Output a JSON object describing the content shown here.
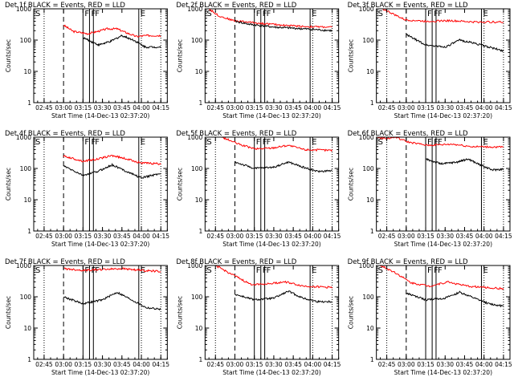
{
  "chart_data": [
    {
      "type": "line",
      "title": "Det 1f  BLACK = Events, RED = LLD",
      "xlabel": "Start Time (14-Dec-13 02:37:20)",
      "ylabel": "Counts/sec",
      "yscale": "log",
      "ylim": [
        1,
        1000
      ],
      "yticks": [
        "1",
        "10",
        "100",
        "1000"
      ],
      "xlim": [
        "02:37",
        "04:20"
      ],
      "xticks": [
        "02:45",
        "03:00",
        "03:15",
        "03:30",
        "03:45",
        "04:00",
        "04:15"
      ],
      "markers": [
        {
          "label": "S",
          "time": "02:37"
        },
        {
          "label": "F",
          "time": "03:15"
        },
        {
          "label": "F",
          "time": "03:20"
        },
        {
          "label": "F",
          "time": "03:23"
        },
        {
          "label": "E",
          "time": "03:58"
        }
      ],
      "series": [
        {
          "color": "#ff0000",
          "t_start": "03:00",
          "t_end": "04:15",
          "points": [
            [
              0,
              300
            ],
            [
              10,
              190
            ],
            [
              25,
              160
            ],
            [
              35,
              190
            ],
            [
              45,
              230
            ],
            [
              55,
              230
            ],
            [
              65,
              170
            ],
            [
              75,
              130
            ],
            [
              85,
              140
            ],
            [
              100,
              140
            ]
          ]
        },
        {
          "color": "#000000",
          "t_start": "03:15",
          "t_end": "04:15",
          "points": [
            [
              0,
              120
            ],
            [
              20,
              70
            ],
            [
              35,
              90
            ],
            [
              50,
              140
            ],
            [
              65,
              100
            ],
            [
              80,
              60
            ],
            [
              100,
              60
            ]
          ]
        }
      ]
    },
    {
      "type": "line",
      "title": "Det 2f  BLACK = Events, RED = LLD",
      "xlabel": "Start Time (14-Dec-13 02:37:20)",
      "ylabel": "Counts/sec",
      "yscale": "log",
      "ylim": [
        1,
        1000
      ],
      "yticks": [
        "1",
        "10",
        "100",
        "1000"
      ],
      "xlim": [
        "02:37",
        "04:20"
      ],
      "xticks": [
        "02:45",
        "03:00",
        "03:15",
        "03:30",
        "03:45",
        "04:00",
        "04:15"
      ],
      "markers": [
        {
          "label": "S",
          "time": "02:37"
        },
        {
          "label": "F",
          "time": "03:15"
        },
        {
          "label": "F",
          "time": "03:20"
        },
        {
          "label": "F",
          "time": "03:23"
        },
        {
          "label": "E",
          "time": "03:58"
        }
      ],
      "series": [
        {
          "color": "#ff0000",
          "t_start": "02:40",
          "t_end": "04:15",
          "points": [
            [
              0,
              1000
            ],
            [
              8,
              600
            ],
            [
              20,
              420
            ],
            [
              40,
              350
            ],
            [
              60,
              300
            ],
            [
              80,
              270
            ],
            [
              100,
              260
            ]
          ]
        },
        {
          "color": "#000000",
          "t_start": "03:00",
          "t_end": "04:15",
          "points": [
            [
              0,
              400
            ],
            [
              15,
              320
            ],
            [
              40,
              260
            ],
            [
              60,
              240
            ],
            [
              80,
              220
            ],
            [
              100,
              200
            ]
          ]
        }
      ]
    },
    {
      "type": "line",
      "title": "Det 3f  BLACK = Events, RED = LLD",
      "xlabel": "Start Time (14-Dec-13 02:37:20)",
      "ylabel": "Counts/sec",
      "yscale": "log",
      "ylim": [
        1,
        1000
      ],
      "yticks": [
        "1",
        "10",
        "100",
        "1000"
      ],
      "xlim": [
        "02:37",
        "04:20"
      ],
      "xticks": [
        "02:45",
        "03:00",
        "03:15",
        "03:30",
        "03:45",
        "04:00",
        "04:15"
      ],
      "markers": [
        {
          "label": "S",
          "time": "02:37"
        },
        {
          "label": "F",
          "time": "03:15"
        },
        {
          "label": "F",
          "time": "03:20"
        },
        {
          "label": "F",
          "time": "03:23"
        },
        {
          "label": "E",
          "time": "03:58"
        }
      ],
      "series": [
        {
          "color": "#ff0000",
          "t_start": "02:42",
          "t_end": "04:15",
          "points": [
            [
              0,
              1000
            ],
            [
              8,
              700
            ],
            [
              18,
              450
            ],
            [
              35,
              400
            ],
            [
              55,
              420
            ],
            [
              75,
              380
            ],
            [
              100,
              380
            ]
          ]
        },
        {
          "color": "#000000",
          "t_start": "03:00",
          "t_end": "04:15",
          "points": [
            [
              0,
              150
            ],
            [
              20,
              70
            ],
            [
              40,
              60
            ],
            [
              55,
              100
            ],
            [
              70,
              80
            ],
            [
              85,
              60
            ],
            [
              100,
              45
            ]
          ]
        }
      ]
    },
    {
      "type": "line",
      "title": "Det 4f  BLACK = Events, RED = LLD",
      "xlabel": "Start Time (14-Dec-13 02:37:20)",
      "ylabel": "Counts/sec",
      "yscale": "log",
      "ylim": [
        1,
        1000
      ],
      "yticks": [
        "1",
        "10",
        "100",
        "1000"
      ],
      "xlim": [
        "02:37",
        "04:20"
      ],
      "xticks": [
        "02:45",
        "03:00",
        "03:15",
        "03:30",
        "03:45",
        "04:00",
        "04:15"
      ],
      "markers": [
        {
          "label": "S",
          "time": "02:37"
        },
        {
          "label": "F",
          "time": "03:15"
        },
        {
          "label": "F",
          "time": "03:20"
        },
        {
          "label": "F",
          "time": "03:23"
        },
        {
          "label": "E",
          "time": "03:58"
        }
      ],
      "series": [
        {
          "color": "#ff0000",
          "t_start": "03:00",
          "t_end": "04:15",
          "points": [
            [
              0,
              250
            ],
            [
              20,
              170
            ],
            [
              35,
              200
            ],
            [
              50,
              260
            ],
            [
              65,
              200
            ],
            [
              80,
              150
            ],
            [
              100,
              140
            ]
          ]
        },
        {
          "color": "#000000",
          "t_start": "03:00",
          "t_end": "04:15",
          "points": [
            [
              0,
              120
            ],
            [
              20,
              60
            ],
            [
              35,
              80
            ],
            [
              50,
              130
            ],
            [
              65,
              80
            ],
            [
              80,
              50
            ],
            [
              100,
              70
            ]
          ]
        }
      ]
    },
    {
      "type": "line",
      "title": "Det 5f  BLACK = Events, RED = LLD",
      "xlabel": "Start Time (14-Dec-13 02:37:20)",
      "ylabel": "Counts/sec",
      "yscale": "log",
      "ylim": [
        1,
        1000
      ],
      "yticks": [
        "1",
        "10",
        "100",
        "1000"
      ],
      "xlim": [
        "02:37",
        "04:20"
      ],
      "xticks": [
        "02:45",
        "03:00",
        "03:15",
        "03:30",
        "03:45",
        "04:00",
        "04:15"
      ],
      "markers": [
        {
          "label": "S",
          "time": "02:37"
        },
        {
          "label": "F",
          "time": "03:15"
        },
        {
          "label": "F",
          "time": "03:20"
        },
        {
          "label": "F",
          "time": "03:23"
        },
        {
          "label": "E",
          "time": "03:58"
        }
      ],
      "series": [
        {
          "color": "#ff0000",
          "t_start": "02:50",
          "t_end": "04:15",
          "points": [
            [
              0,
              1000
            ],
            [
              15,
              600
            ],
            [
              30,
              420
            ],
            [
              45,
              450
            ],
            [
              60,
              550
            ],
            [
              75,
              400
            ],
            [
              100,
              380
            ]
          ]
        },
        {
          "color": "#000000",
          "t_start": "03:00",
          "t_end": "04:15",
          "points": [
            [
              0,
              160
            ],
            [
              20,
              100
            ],
            [
              40,
              110
            ],
            [
              55,
              160
            ],
            [
              70,
              110
            ],
            [
              85,
              80
            ],
            [
              100,
              85
            ]
          ]
        }
      ]
    },
    {
      "type": "line",
      "title": "Det 6f  BLACK = Events, RED = LLD",
      "xlabel": "Start Time (14-Dec-13 02:37:20)",
      "ylabel": "Counts/sec",
      "yscale": "log",
      "ylim": [
        1,
        1000
      ],
      "yticks": [
        "1",
        "10",
        "100",
        "1000"
      ],
      "xlim": [
        "02:37",
        "04:20"
      ],
      "xticks": [
        "02:45",
        "03:00",
        "03:15",
        "03:30",
        "03:45",
        "04:00",
        "04:15"
      ],
      "markers": [
        {
          "label": "S",
          "time": "02:37"
        },
        {
          "label": "F",
          "time": "03:15"
        },
        {
          "label": "F",
          "time": "03:20"
        },
        {
          "label": "F",
          "time": "03:23"
        },
        {
          "label": "E",
          "time": "03:58"
        }
      ],
      "series": [
        {
          "color": "#ff0000",
          "t_start": "02:37",
          "t_end": "04:15",
          "points": [
            [
              0,
              1000
            ],
            [
              8,
              900
            ],
            [
              15,
              1000
            ],
            [
              25,
              700
            ],
            [
              40,
              550
            ],
            [
              60,
              600
            ],
            [
              75,
              500
            ],
            [
              100,
              480
            ]
          ]
        },
        {
          "color": "#000000",
          "t_start": "03:15",
          "t_end": "04:15",
          "points": [
            [
              0,
              200
            ],
            [
              20,
              140
            ],
            [
              40,
              160
            ],
            [
              55,
              200
            ],
            [
              70,
              130
            ],
            [
              85,
              90
            ],
            [
              100,
              95
            ]
          ]
        }
      ]
    },
    {
      "type": "line",
      "title": "Det 7f  BLACK = Events, RED = LLD",
      "xlabel": "Start Time (14-Dec-13 02:37:20)",
      "ylabel": "Counts/sec",
      "yscale": "log",
      "ylim": [
        1,
        1000
      ],
      "yticks": [
        "1",
        "10",
        "100",
        "1000"
      ],
      "xlim": [
        "02:37",
        "04:20"
      ],
      "xticks": [
        "02:45",
        "03:00",
        "03:15",
        "03:30",
        "03:45",
        "04:00",
        "04:15"
      ],
      "markers": [
        {
          "label": "S",
          "time": "02:37"
        },
        {
          "label": "F",
          "time": "03:15"
        },
        {
          "label": "F",
          "time": "03:20"
        },
        {
          "label": "F",
          "time": "03:23"
        },
        {
          "label": "E",
          "time": "03:58"
        }
      ],
      "series": [
        {
          "color": "#ff0000",
          "t_start": "03:00",
          "t_end": "04:15",
          "points": [
            [
              0,
              800
            ],
            [
              20,
              700
            ],
            [
              40,
              750
            ],
            [
              60,
              800
            ],
            [
              80,
              700
            ],
            [
              100,
              650
            ]
          ]
        },
        {
          "color": "#000000",
          "t_start": "03:00",
          "t_end": "04:15",
          "points": [
            [
              0,
              100
            ],
            [
              20,
              60
            ],
            [
              40,
              80
            ],
            [
              55,
              140
            ],
            [
              70,
              80
            ],
            [
              85,
              45
            ],
            [
              100,
              40
            ]
          ]
        }
      ]
    },
    {
      "type": "line",
      "title": "Det 8f  BLACK = Events, RED = LLD",
      "xlabel": "Start Time (14-Dec-13 02:37:20)",
      "ylabel": "Counts/sec",
      "yscale": "log",
      "ylim": [
        1,
        1000
      ],
      "yticks": [
        "1",
        "10",
        "100",
        "1000"
      ],
      "xlim": [
        "02:37",
        "04:20"
      ],
      "xticks": [
        "02:45",
        "03:00",
        "03:15",
        "03:30",
        "03:45",
        "04:00",
        "04:15"
      ],
      "markers": [
        {
          "label": "S",
          "time": "02:37"
        },
        {
          "label": "F",
          "time": "03:15"
        },
        {
          "label": "F",
          "time": "03:20"
        },
        {
          "label": "F",
          "time": "03:23"
        },
        {
          "label": "E",
          "time": "03:58"
        }
      ],
      "series": [
        {
          "color": "#ff0000",
          "t_start": "02:45",
          "t_end": "04:15",
          "points": [
            [
              0,
              1000
            ],
            [
              15,
              500
            ],
            [
              30,
              250
            ],
            [
              45,
              260
            ],
            [
              60,
              300
            ],
            [
              75,
              220
            ],
            [
              100,
              200
            ]
          ]
        },
        {
          "color": "#000000",
          "t_start": "03:00",
          "t_end": "04:15",
          "points": [
            [
              0,
              120
            ],
            [
              20,
              80
            ],
            [
              40,
              90
            ],
            [
              55,
              150
            ],
            [
              70,
              90
            ],
            [
              85,
              70
            ],
            [
              100,
              70
            ]
          ]
        }
      ]
    },
    {
      "type": "line",
      "title": "Det 9f  BLACK = Events, RED = LLD",
      "xlabel": "Start Time (14-Dec-13 02:37:20)",
      "ylabel": "Counts/sec",
      "yscale": "log",
      "ylim": [
        1,
        1000
      ],
      "yticks": [
        "1",
        "10",
        "100",
        "1000"
      ],
      "xlim": [
        "02:37",
        "04:20"
      ],
      "xticks": [
        "02:45",
        "03:00",
        "03:15",
        "03:30",
        "03:45",
        "04:00",
        "04:15"
      ],
      "markers": [
        {
          "label": "S",
          "time": "02:37"
        },
        {
          "label": "F",
          "time": "03:15"
        },
        {
          "label": "F",
          "time": "03:20"
        },
        {
          "label": "F",
          "time": "03:23"
        },
        {
          "label": "E",
          "time": "03:58"
        }
      ],
      "series": [
        {
          "color": "#ff0000",
          "t_start": "02:40",
          "t_end": "04:15",
          "points": [
            [
              0,
              1000
            ],
            [
              12,
              600
            ],
            [
              25,
              280
            ],
            [
              40,
              220
            ],
            [
              55,
              300
            ],
            [
              70,
              220
            ],
            [
              100,
              180
            ]
          ]
        },
        {
          "color": "#000000",
          "t_start": "03:00",
          "t_end": "04:15",
          "points": [
            [
              0,
              130
            ],
            [
              20,
              80
            ],
            [
              40,
              90
            ],
            [
              55,
              140
            ],
            [
              70,
              90
            ],
            [
              85,
              60
            ],
            [
              100,
              50
            ]
          ]
        }
      ]
    }
  ]
}
